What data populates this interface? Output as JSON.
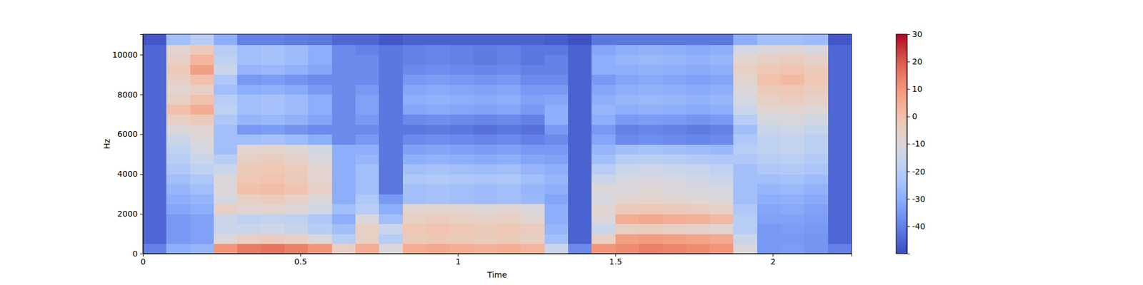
{
  "chart_data": {
    "type": "heatmap",
    "x_label": "Time",
    "y_label": "Hz",
    "time_bins": [
      0,
      0.075,
      0.15,
      0.225,
      0.3,
      0.375,
      0.45,
      0.525,
      0.6,
      0.675,
      0.75,
      0.825,
      0.9,
      0.975,
      1.05,
      1.125,
      1.2,
      1.275,
      1.35,
      1.425,
      1.5,
      1.575,
      1.65,
      1.725,
      1.8,
      1.875,
      1.95,
      2.025,
      2.1,
      2.175,
      2.25
    ],
    "freq_bins": [
      0,
      500,
      1000,
      1500,
      2000,
      2500,
      3000,
      3500,
      4000,
      4500,
      5000,
      5500,
      6000,
      6500,
      7000,
      7500,
      8000,
      8500,
      9000,
      9500,
      10000,
      10500,
      11025
    ],
    "cells": [
      [
        -40,
        -30,
        -28,
        10,
        15,
        16,
        14,
        10,
        -5,
        5,
        -10,
        5,
        6,
        5,
        4,
        5,
        3,
        -15,
        -38,
        10,
        12,
        14,
        13,
        12,
        10,
        -10,
        -35,
        -34,
        -36,
        -40
      ],
      [
        -45,
        -35,
        -33,
        -10,
        -5,
        -4,
        -6,
        -10,
        -20,
        -5,
        -20,
        -3,
        -2,
        -3,
        -4,
        -3,
        -5,
        -25,
        -46,
        -5,
        8,
        9,
        8,
        7,
        6,
        -15,
        -35,
        -35,
        -36,
        -45
      ],
      [
        -45,
        -35,
        -33,
        -15,
        -15,
        -14,
        -16,
        -20,
        -25,
        -5,
        -15,
        -2,
        -1,
        -2,
        -3,
        -2,
        -4,
        -28,
        -46,
        -15,
        -5,
        -4,
        -5,
        -6,
        -8,
        -20,
        -35,
        -34,
        -35,
        -45
      ],
      [
        -45,
        -35,
        -33,
        -15,
        -18,
        -17,
        -18,
        -22,
        -30,
        -10,
        -25,
        -5,
        -4,
        -5,
        -6,
        -5,
        -8,
        -30,
        -46,
        -10,
        5,
        6,
        5,
        4,
        2,
        -20,
        -33,
        -33,
        -34,
        -45
      ],
      [
        -45,
        -32,
        -30,
        -5,
        -8,
        -7,
        -9,
        -13,
        -25,
        -20,
        -30,
        -8,
        -7,
        -8,
        -9,
        -8,
        -10,
        -30,
        -46,
        -8,
        -3,
        -2,
        -3,
        -4,
        -6,
        -22,
        -32,
        -31,
        -33,
        -45
      ],
      [
        -45,
        -30,
        -28,
        -12,
        -5,
        -4,
        -6,
        -10,
        -30,
        -22,
        -35,
        -25,
        -24,
        -25,
        -26,
        -25,
        -27,
        -32,
        -46,
        -12,
        -8,
        -7,
        -8,
        -9,
        -10,
        -25,
        -30,
        -29,
        -31,
        -45
      ],
      [
        -45,
        -28,
        -25,
        -10,
        0,
        1,
        -1,
        -5,
        -30,
        -25,
        -42,
        -25,
        -24,
        -25,
        -26,
        -25,
        -28,
        -30,
        -46,
        -10,
        -10,
        -9,
        -10,
        -11,
        -12,
        -25,
        -28,
        -27,
        -29,
        -45
      ],
      [
        -45,
        -25,
        -22,
        -10,
        -2,
        -1,
        -3,
        -7,
        -30,
        -25,
        -42,
        -22,
        -21,
        -22,
        -23,
        -22,
        -25,
        -28,
        -46,
        -15,
        -12,
        -11,
        -12,
        -13,
        -15,
        -25,
        -25,
        -24,
        -26,
        -45
      ],
      [
        -45,
        -22,
        -18,
        -15,
        -3,
        -2,
        -4,
        -8,
        -30,
        -25,
        -42,
        -25,
        -24,
        -25,
        -26,
        -25,
        -28,
        -30,
        -46,
        -20,
        -15,
        -14,
        -15,
        -16,
        -18,
        -25,
        -22,
        -21,
        -23,
        -45
      ],
      [
        -45,
        -20,
        -15,
        -20,
        -5,
        -4,
        -6,
        -10,
        -30,
        -28,
        -42,
        -30,
        -29,
        -30,
        -31,
        -30,
        -32,
        -33,
        -46,
        -25,
        -20,
        -19,
        -20,
        -21,
        -22,
        -22,
        -20,
        -19,
        -21,
        -45
      ],
      [
        -45,
        -18,
        -12,
        -25,
        -8,
        -7,
        -9,
        -13,
        -30,
        -30,
        -42,
        -33,
        -32,
        -33,
        -34,
        -33,
        -35,
        -35,
        -46,
        -28,
        -25,
        -24,
        -25,
        -26,
        -27,
        -20,
        -18,
        -17,
        -19,
        -45
      ],
      [
        -45,
        -15,
        -10,
        -25,
        -25,
        -24,
        -26,
        -30,
        -38,
        -35,
        -42,
        -38,
        -37,
        -38,
        -39,
        -38,
        -40,
        -38,
        -46,
        -32,
        -38,
        -37,
        -38,
        -39,
        -38,
        -22,
        -18,
        -17,
        -19,
        -45
      ],
      [
        -45,
        -10,
        -8,
        -25,
        -35,
        -34,
        -36,
        -38,
        -38,
        -38,
        -42,
        -42,
        -41,
        -42,
        -43,
        -42,
        -43,
        -35,
        -46,
        -35,
        -40,
        -39,
        -40,
        -41,
        -40,
        -25,
        -15,
        -14,
        -16,
        -45
      ],
      [
        -45,
        -5,
        -3,
        -22,
        -28,
        -27,
        -29,
        -32,
        -38,
        -35,
        -42,
        -38,
        -37,
        -38,
        -39,
        -38,
        -40,
        -30,
        -46,
        -30,
        -35,
        -34,
        -35,
        -36,
        -35,
        -20,
        -12,
        -11,
        -13,
        -45
      ],
      [
        -45,
        0,
        5,
        -18,
        -25,
        -24,
        -26,
        -30,
        -38,
        -33,
        -42,
        -32,
        -31,
        -32,
        -33,
        -32,
        -35,
        -30,
        -46,
        -28,
        -30,
        -29,
        -30,
        -31,
        -30,
        -15,
        -8,
        -7,
        -9,
        -45
      ],
      [
        -45,
        -5,
        0,
        -20,
        -25,
        -24,
        -26,
        -30,
        -38,
        -33,
        -42,
        -30,
        -29,
        -30,
        -31,
        -30,
        -33,
        -32,
        -46,
        -30,
        -28,
        -27,
        -28,
        -29,
        -28,
        -12,
        -5,
        -4,
        -6,
        -45
      ],
      [
        -45,
        -8,
        -5,
        -25,
        -30,
        -29,
        -31,
        -35,
        -38,
        -35,
        -42,
        -32,
        -31,
        -32,
        -33,
        -32,
        -35,
        -35,
        -46,
        -32,
        -30,
        -29,
        -30,
        -31,
        -30,
        -10,
        -3,
        -2,
        -4,
        -45
      ],
      [
        -45,
        -5,
        0,
        -22,
        -35,
        -34,
        -36,
        -38,
        -38,
        -38,
        -42,
        -35,
        -34,
        -35,
        -36,
        -35,
        -38,
        -38,
        -46,
        -35,
        -32,
        -31,
        -32,
        -33,
        -32,
        -8,
        0,
        2,
        -2,
        -45
      ],
      [
        -45,
        -3,
        8,
        -15,
        -28,
        -27,
        -29,
        -32,
        -38,
        -38,
        -42,
        -38,
        -37,
        -38,
        -39,
        -38,
        -40,
        -40,
        -46,
        -30,
        -30,
        -29,
        -30,
        -31,
        -30,
        -5,
        -2,
        -1,
        -3,
        -45
      ],
      [
        -45,
        -5,
        3,
        -18,
        -25,
        -24,
        -26,
        -30,
        -38,
        -38,
        -42,
        -40,
        -39,
        -40,
        -41,
        -40,
        -42,
        -40,
        -46,
        -30,
        -28,
        -27,
        -28,
        -29,
        -28,
        -8,
        -5,
        -4,
        -6,
        -45
      ],
      [
        -45,
        -8,
        -3,
        -20,
        -25,
        -24,
        -26,
        -30,
        -38,
        -40,
        -42,
        -40,
        -39,
        -40,
        -41,
        -40,
        -42,
        -42,
        -46,
        -32,
        -30,
        -29,
        -30,
        -31,
        -30,
        -12,
        -10,
        -9,
        -11,
        -45
      ],
      [
        -48,
        -25,
        -20,
        -30,
        -40,
        -40,
        -41,
        -42,
        -45,
        -45,
        -48,
        -46,
        -46,
        -46,
        -46,
        -46,
        -46,
        -47,
        -49,
        -42,
        -42,
        -42,
        -42,
        -42,
        -42,
        -30,
        -25,
        -25,
        -26,
        -48
      ]
    ],
    "xlim": [
      0,
      2.25
    ],
    "ylim": [
      0,
      11025
    ],
    "xticks": [
      0,
      0.5,
      1,
      1.5,
      2
    ],
    "yticks": [
      0,
      2000,
      4000,
      6000,
      8000,
      10000
    ],
    "colorbar": {
      "range": [
        -50,
        30
      ],
      "ticks": [
        -40,
        -30,
        -20,
        -10,
        0,
        10,
        20,
        30
      ]
    }
  }
}
